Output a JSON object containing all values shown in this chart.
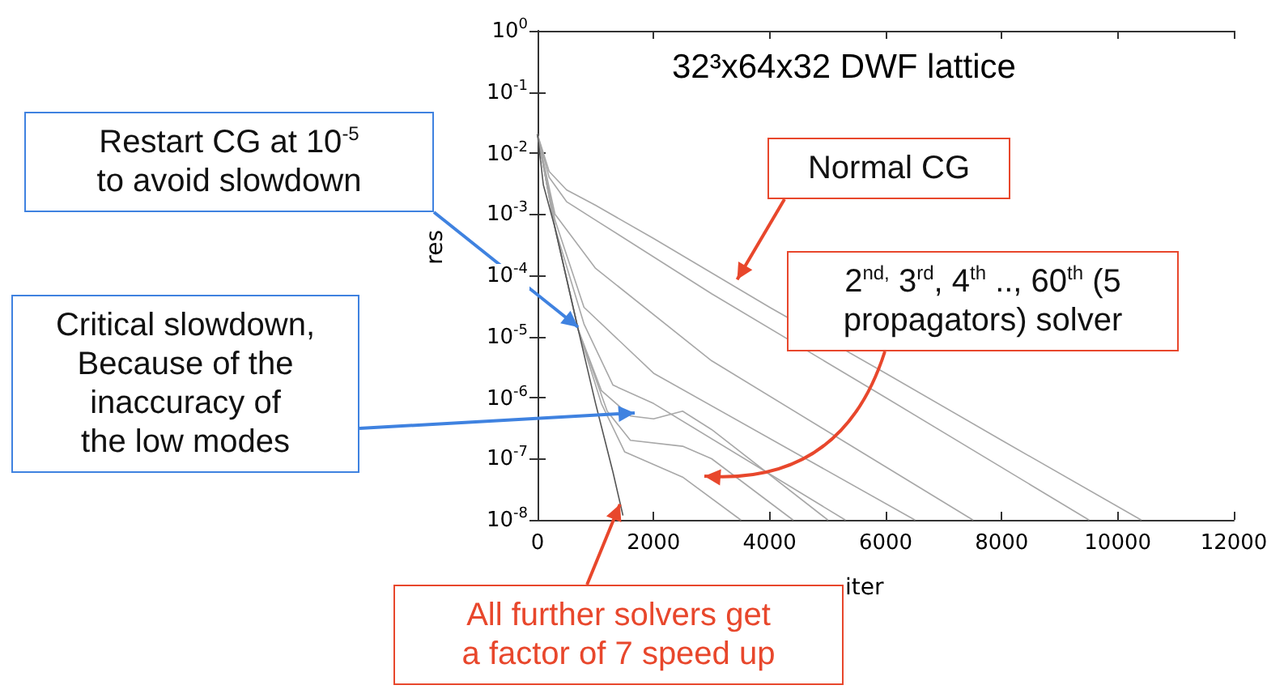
{
  "chart_data": {
    "type": "line",
    "title": "32³x64x32 DWF lattice",
    "xlabel": "iter",
    "ylabel": "res",
    "log": "y",
    "grid": false,
    "marker": "none",
    "line_style": "solid",
    "xlim": [
      0,
      12000
    ],
    "xticks": [
      0,
      2000,
      4000,
      6000,
      8000,
      10000,
      12000
    ],
    "ylim": [
      1e-08,
      1
    ],
    "yticks": [
      {
        "value": 1,
        "label": "10$^{0}$"
      },
      {
        "value": 0.1,
        "label": "10$^{-1}$"
      },
      {
        "value": 0.01,
        "label": "10$^{-2}$"
      },
      {
        "value": 0.001,
        "label": "10$^{-3}$"
      },
      {
        "value": 0.0001,
        "label": "10$^{-4}$"
      },
      {
        "value": 1e-05,
        "label": "10$^{-5}$"
      },
      {
        "value": 1e-06,
        "label": "10$^{-6}$"
      },
      {
        "value": 1e-07,
        "label": "10$^{-7}$"
      },
      {
        "value": 1e-08,
        "label": "10$^{-8}$"
      }
    ],
    "series": [
      {
        "color": "#a8a8a8",
        "x": [
          0,
          200,
          500,
          1000,
          2000,
          4000,
          6000,
          8000,
          10400
        ],
        "values": [
          0.02,
          0.005,
          0.0025,
          0.0014,
          0.0004,
          3e-05,
          2.5e-06,
          2e-07,
          1e-08
        ]
      },
      {
        "color": "#a8a8a8",
        "x": [
          0,
          200,
          500,
          1000,
          3000,
          6000,
          9500
        ],
        "values": [
          0.02,
          0.004,
          0.0016,
          0.0008,
          5e-05,
          1e-06,
          1e-08
        ]
      },
      {
        "color": "#a8a8a8",
        "x": [
          0,
          300,
          1000,
          3000,
          7500
        ],
        "values": [
          0.02,
          0.001,
          0.00013,
          4e-06,
          1e-08
        ]
      },
      {
        "color": "#a8a8a8",
        "x": [
          0,
          300,
          800,
          2000,
          6500
        ],
        "values": [
          0.02,
          0.0008,
          3e-05,
          2.5e-06,
          1e-08
        ]
      },
      {
        "color": "#a8a8a8",
        "x": [
          0,
          300,
          800,
          1300,
          2000,
          5300
        ],
        "values": [
          0.02,
          0.0006,
          1.6e-05,
          1.6e-06,
          8e-07,
          1e-08
        ]
      },
      {
        "color": "#a8a8a8",
        "x": [
          0,
          300,
          700,
          1100,
          1600,
          2000,
          2500,
          3000,
          5000
        ],
        "values": [
          0.02,
          0.0006,
          1.3e-05,
          1.3e-06,
          5e-07,
          4.5e-07,
          6e-07,
          3e-07,
          1e-08
        ]
      },
      {
        "color": "#a8a8a8",
        "x": [
          0,
          300,
          700,
          1200,
          1600,
          2500,
          3000,
          4400
        ],
        "values": [
          0.02,
          0.0006,
          1.3e-05,
          6e-07,
          2e-07,
          1.6e-07,
          1e-07,
          1e-08
        ]
      },
      {
        "color": "#a8a8a8",
        "x": [
          0,
          300,
          700,
          1100,
          1500,
          2500,
          3500
        ],
        "values": [
          0.02,
          0.0006,
          1.3e-05,
          8e-07,
          1.3e-07,
          5e-08,
          1e-08
        ]
      },
      {
        "color": "#555555",
        "x": [
          0,
          100,
          300,
          700,
          1000,
          1300,
          1470
        ],
        "values": [
          0.02,
          0.003,
          0.0006,
          1.3e-05,
          8e-07,
          6e-08,
          1.2e-08
        ]
      }
    ],
    "annotations": [
      "Restart CG at 10$^{-5}$ to avoid slowdown",
      "Critical slowdown, Because of the inaccuracy of the low modes",
      {
        "text": "Normal CG",
        "x": 3440,
        "y": 8.5e-05
      },
      "2$^{nd,}$ 3$^{rd}$, 4$^{th}$ .., 60$^{th}$ (5 propagators) solver",
      {
        "text": "All further solvers get a factor of 7 speed up",
        "x": 1420,
        "y": 1.8e-08
      }
    ]
  }
}
